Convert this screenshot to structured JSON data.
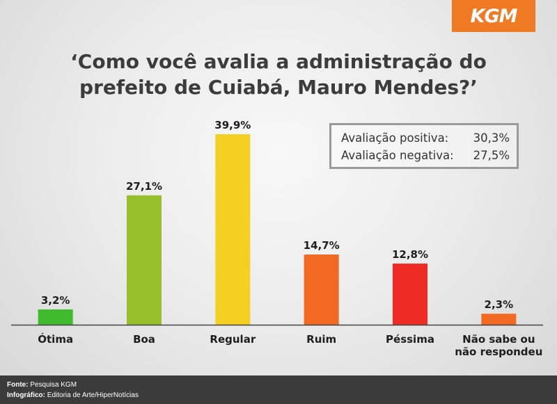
{
  "logo": "KGM",
  "summary": {
    "positive_label": "Avaliação positiva:",
    "positive_value": "30,3%",
    "negative_label": "Avaliação negativa:",
    "negative_value": "27,5%"
  },
  "footer": {
    "source_label": "Fonte:",
    "source_value": "Pesquisa KGM",
    "infographic_label": "Infográfico:",
    "infographic_value": "Editoria de Arte/HiperNotícias"
  },
  "chart_data": {
    "type": "bar",
    "title": "‘Como você avalia a administração do prefeito de Cuiabá, Mauro Mendes?’",
    "title_lines": [
      "‘Como você avalia a administração do",
      "prefeito de Cuiabá, Mauro Mendes?’"
    ],
    "categories": [
      [
        "Ótima"
      ],
      [
        "Boa"
      ],
      [
        "Regular"
      ],
      [
        "Ruim"
      ],
      [
        "Péssima"
      ],
      [
        "Não sabe ou",
        "não respondeu"
      ]
    ],
    "values": [
      3.2,
      27.1,
      39.9,
      14.7,
      12.8,
      2.3
    ],
    "value_labels": [
      "3,2%",
      "27,1%",
      "39,9%",
      "14,7%",
      "12,8%",
      "2,3%"
    ],
    "colors": [
      "#3fbc2c",
      "#97bf2c",
      "#f4d023",
      "#f26a22",
      "#ee2b25",
      "#f26a22"
    ],
    "ylim": [
      0,
      40
    ],
    "axis_color": "#444444",
    "grid": false,
    "legend": "none"
  }
}
